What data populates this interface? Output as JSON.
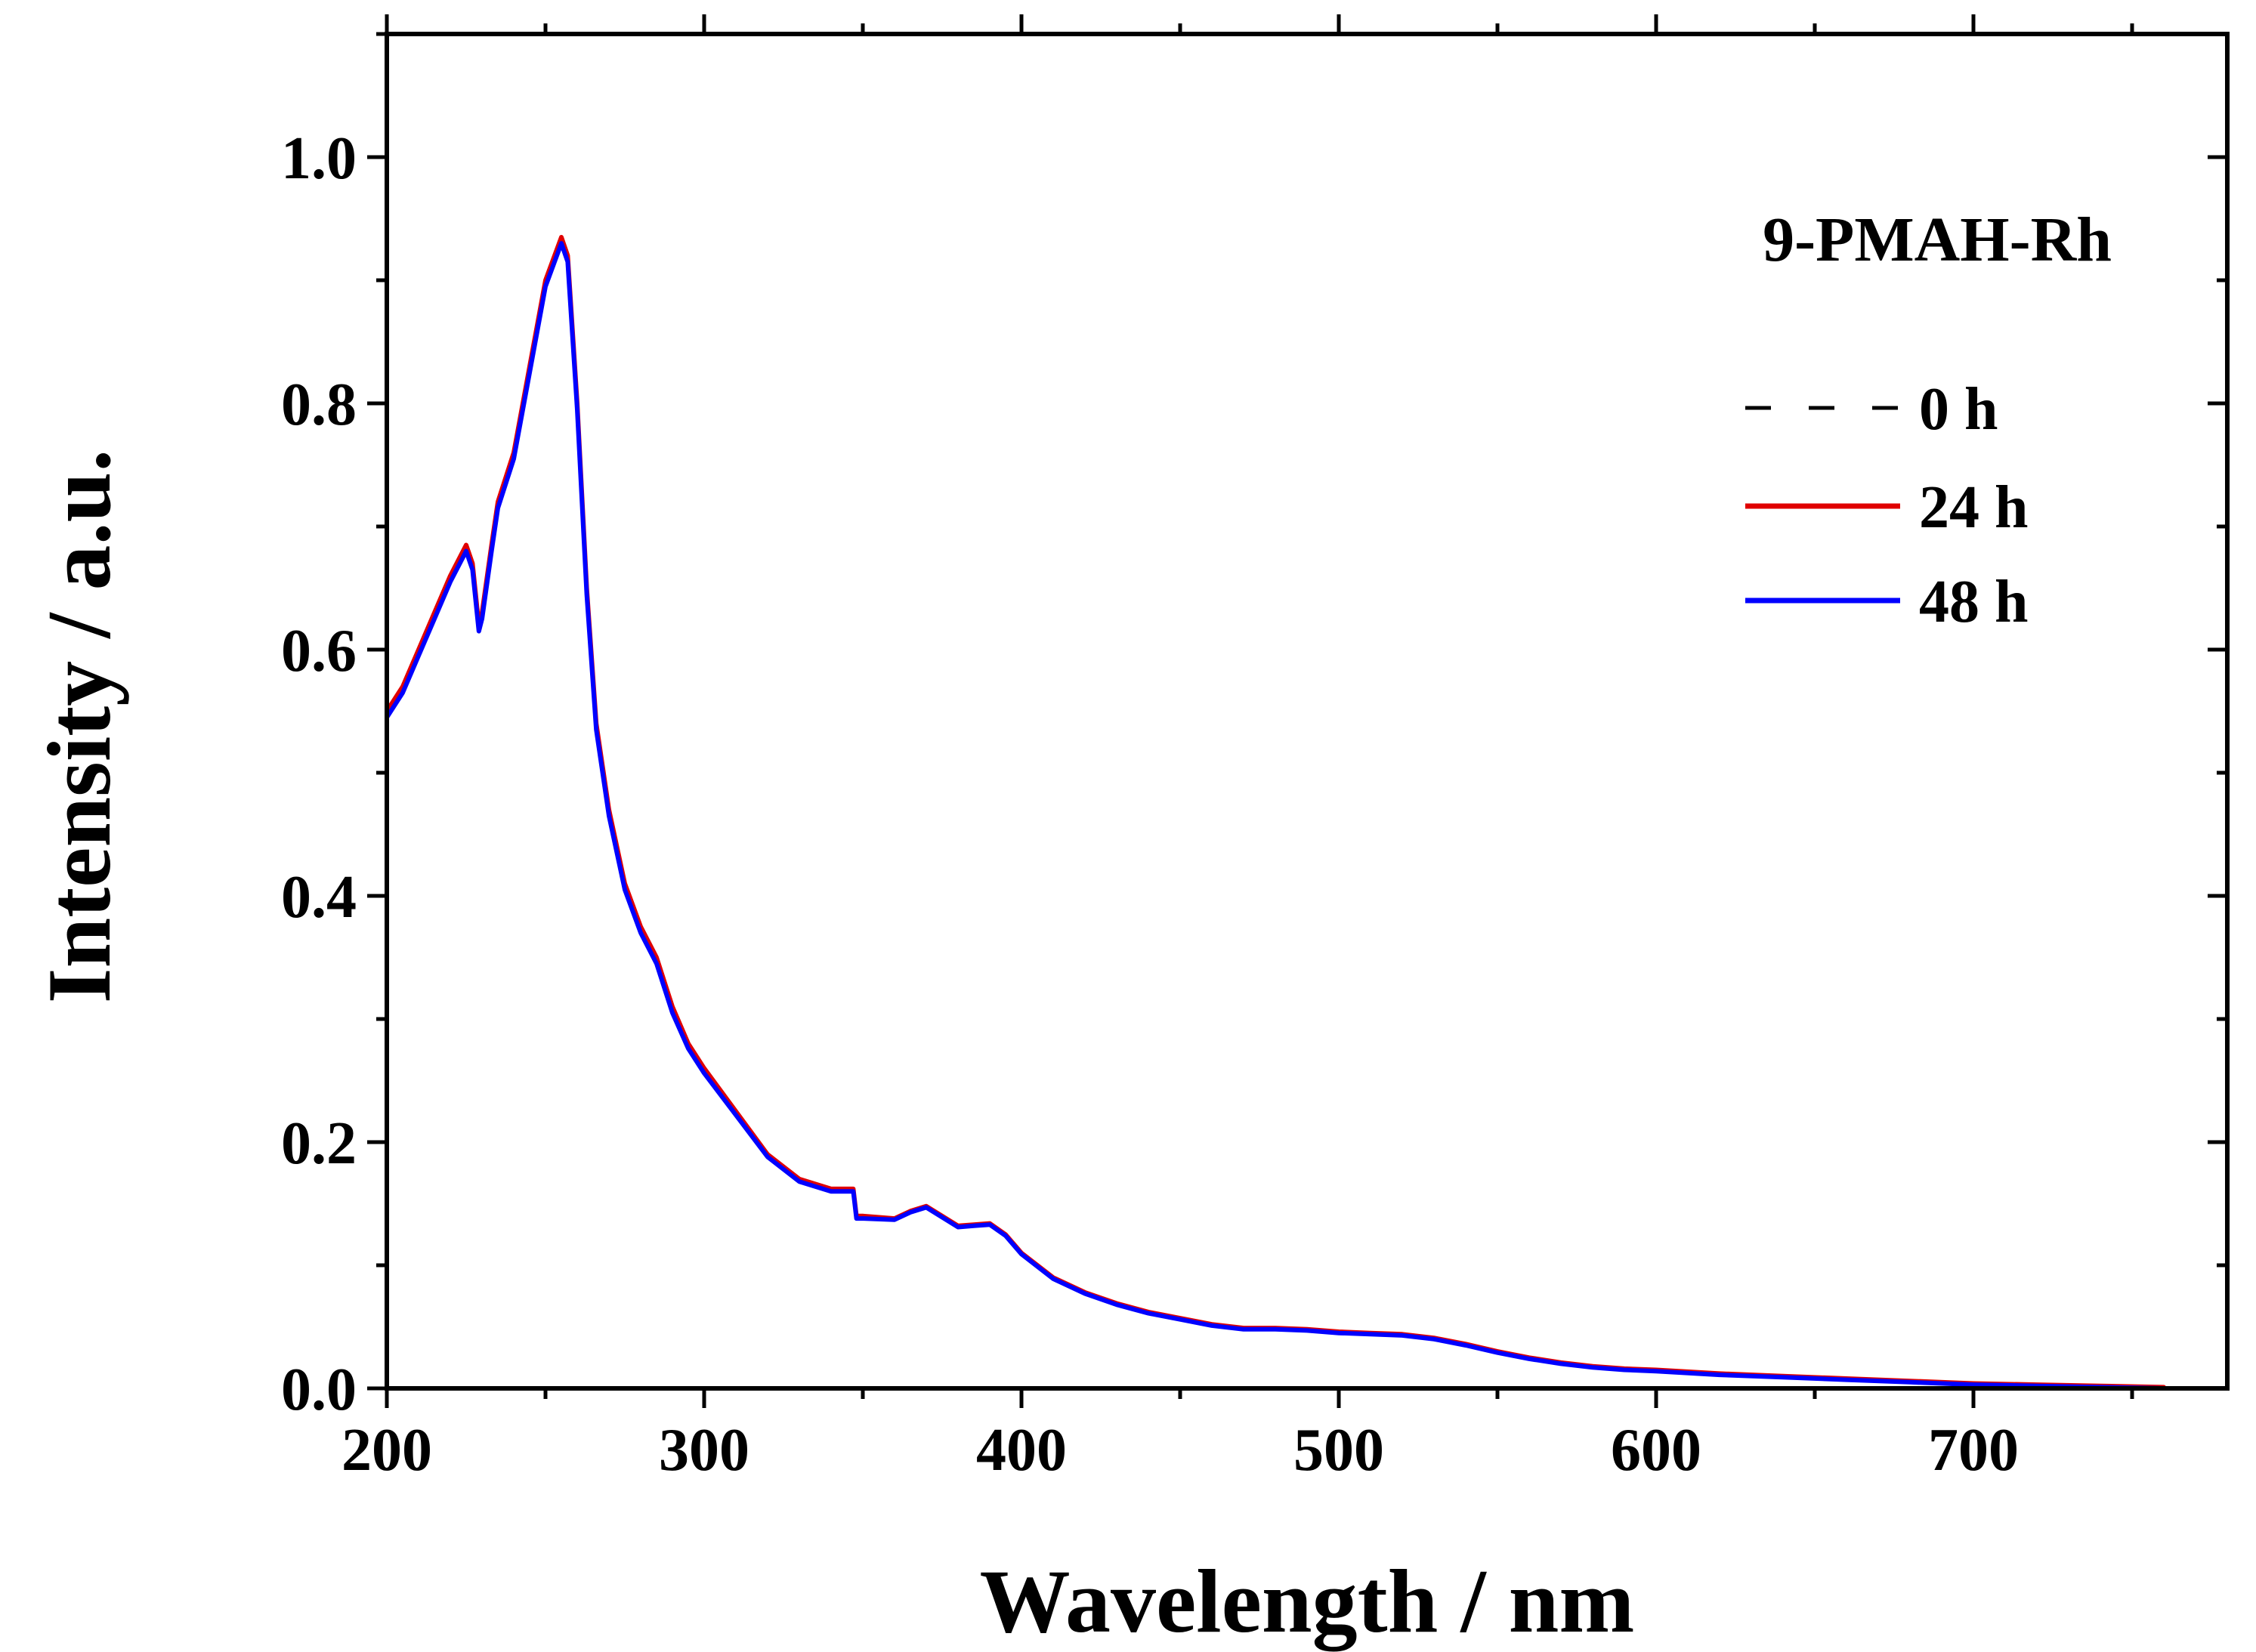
{
  "chart_data": {
    "type": "line",
    "title": "",
    "annotation": "9-PMAH-Rh",
    "xlabel": "Wavelength / nm",
    "ylabel": "Intensity / a.u.",
    "xlim": [
      200,
      780
    ],
    "ylim": [
      0.0,
      1.1
    ],
    "xticks": [
      200,
      300,
      400,
      500,
      600,
      700
    ],
    "xtick_labels": [
      "200",
      "300",
      "400",
      "500",
      "600",
      "700"
    ],
    "yticks": [
      0.0,
      0.2,
      0.4,
      0.6,
      0.8,
      1.0
    ],
    "ytick_labels": [
      "0.0",
      "0.2",
      "0.4",
      "0.6",
      "0.8",
      "1.0"
    ],
    "grid": false,
    "legend_position": "top-right",
    "x": [
      200,
      205,
      210,
      215,
      220,
      225,
      227,
      229,
      230,
      233,
      235,
      240,
      245,
      250,
      255,
      257,
      260,
      263,
      266,
      270,
      275,
      280,
      285,
      290,
      295,
      300,
      310,
      320,
      330,
      340,
      347,
      348,
      350,
      360,
      365,
      370,
      375,
      380,
      385,
      390,
      395,
      400,
      410,
      420,
      430,
      440,
      450,
      460,
      470,
      480,
      490,
      500,
      510,
      520,
      530,
      540,
      550,
      560,
      570,
      580,
      590,
      600,
      620,
      640,
      660,
      680,
      700,
      720,
      740,
      760
    ],
    "series": [
      {
        "name": "0 h",
        "color": "#000000",
        "style": "dashed",
        "values": [
          0.55,
          0.57,
          0.6,
          0.63,
          0.66,
          0.685,
          0.67,
          0.62,
          0.63,
          0.685,
          0.72,
          0.76,
          0.83,
          0.9,
          0.935,
          0.92,
          0.8,
          0.65,
          0.54,
          0.47,
          0.41,
          0.375,
          0.35,
          0.31,
          0.28,
          0.26,
          0.225,
          0.19,
          0.17,
          0.162,
          0.162,
          0.14,
          0.14,
          0.138,
          0.144,
          0.148,
          0.14,
          0.132,
          0.133,
          0.134,
          0.125,
          0.11,
          0.09,
          0.078,
          0.069,
          0.062,
          0.057,
          0.052,
          0.049,
          0.049,
          0.048,
          0.046,
          0.045,
          0.044,
          0.041,
          0.036,
          0.03,
          0.025,
          0.021,
          0.018,
          0.016,
          0.015,
          0.012,
          0.01,
          0.008,
          0.006,
          0.004,
          0.003,
          0.002,
          0.001
        ]
      },
      {
        "name": "24 h",
        "color": "#e00000",
        "style": "solid",
        "values": [
          0.55,
          0.57,
          0.6,
          0.63,
          0.66,
          0.685,
          0.67,
          0.62,
          0.63,
          0.685,
          0.72,
          0.76,
          0.83,
          0.9,
          0.935,
          0.92,
          0.8,
          0.65,
          0.54,
          0.47,
          0.41,
          0.375,
          0.35,
          0.31,
          0.28,
          0.26,
          0.225,
          0.19,
          0.17,
          0.162,
          0.162,
          0.14,
          0.14,
          0.138,
          0.144,
          0.148,
          0.14,
          0.132,
          0.133,
          0.134,
          0.125,
          0.11,
          0.09,
          0.078,
          0.069,
          0.062,
          0.057,
          0.052,
          0.049,
          0.049,
          0.048,
          0.046,
          0.045,
          0.044,
          0.041,
          0.036,
          0.03,
          0.025,
          0.021,
          0.018,
          0.016,
          0.015,
          0.012,
          0.01,
          0.008,
          0.006,
          0.004,
          0.003,
          0.002,
          0.001
        ]
      },
      {
        "name": "48 h",
        "color": "#0000ff",
        "style": "solid",
        "values": [
          0.545,
          0.565,
          0.595,
          0.625,
          0.655,
          0.68,
          0.665,
          0.615,
          0.625,
          0.68,
          0.715,
          0.755,
          0.825,
          0.895,
          0.93,
          0.915,
          0.795,
          0.645,
          0.535,
          0.465,
          0.405,
          0.37,
          0.345,
          0.305,
          0.276,
          0.256,
          0.222,
          0.188,
          0.168,
          0.16,
          0.16,
          0.138,
          0.138,
          0.137,
          0.143,
          0.147,
          0.139,
          0.131,
          0.132,
          0.133,
          0.124,
          0.109,
          0.089,
          0.077,
          0.068,
          0.061,
          0.056,
          0.051,
          0.048,
          0.048,
          0.047,
          0.045,
          0.044,
          0.043,
          0.04,
          0.035,
          0.029,
          0.024,
          0.02,
          0.017,
          0.015,
          0.014,
          0.011,
          0.009,
          0.007,
          0.005,
          0.003,
          0.002,
          0.001,
          0.0
        ]
      }
    ]
  }
}
